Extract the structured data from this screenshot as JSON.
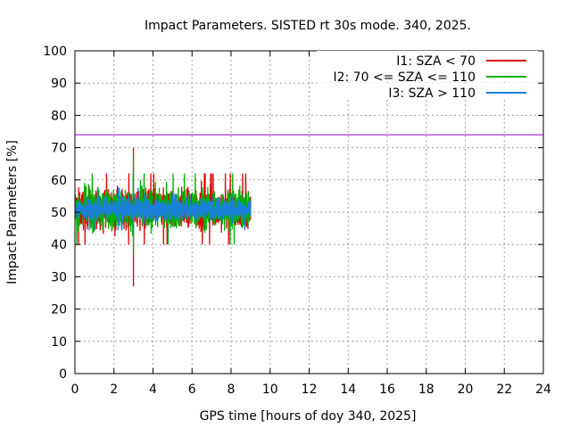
{
  "chart_data": {
    "type": "line",
    "title": "Impact Parameters. SISTED rt 30s mode. 340, 2025.",
    "xlabel": "GPS time [hours of doy 340, 2025]",
    "ylabel": "Impact Parameters [%]",
    "xlim": [
      0,
      24
    ],
    "ylim": [
      0,
      100
    ],
    "xticks": [
      0,
      2,
      4,
      6,
      8,
      10,
      12,
      14,
      16,
      18,
      20,
      22,
      24
    ],
    "yticks": [
      0,
      10,
      20,
      30,
      40,
      50,
      60,
      70,
      80,
      90,
      100
    ],
    "grid": true,
    "legend_position": "top-right",
    "threshold": {
      "value": 74,
      "color": "#9400d3"
    },
    "series": [
      {
        "name": "I1: SZA < 70",
        "color": "#e00000",
        "x_start": 0,
        "x_end": 9.0,
        "mean": 51,
        "spread": 5,
        "min": 27,
        "max": 70
      },
      {
        "name": "I2: 70 <= SZA <= 110",
        "color": "#00b000",
        "x_start": 0,
        "x_end": 9.0,
        "mean": 51,
        "spread": 5,
        "min": 37,
        "max": 68
      },
      {
        "name": "I3: SZA > 110",
        "color": "#1a7fd9",
        "x_start": 0,
        "x_end": 9.0,
        "mean": 51,
        "spread": 3,
        "min": 43,
        "max": 59
      }
    ]
  }
}
